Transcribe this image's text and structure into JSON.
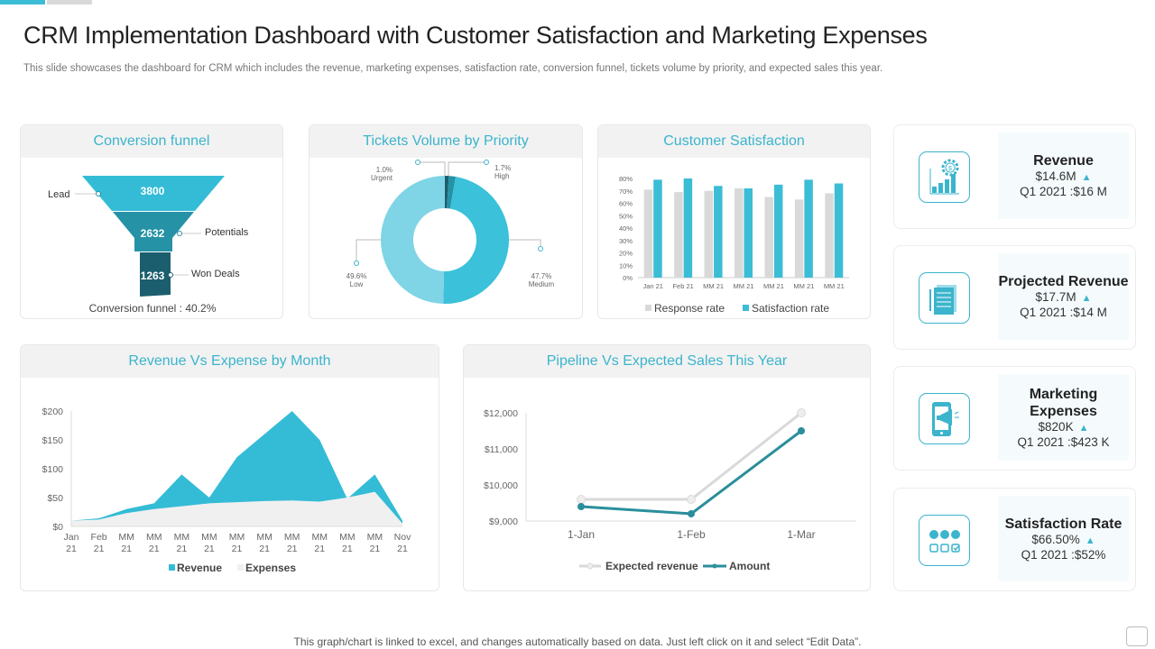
{
  "header": {
    "title": "CRM Implementation Dashboard with Customer Satisfaction and Marketing Expenses",
    "subtitle": "This slide showcases the dashboard for CRM which includes the revenue, marketing expenses, satisfaction rate, conversion funnel, tickets volume by priority, and expected sales this year."
  },
  "colors": {
    "accent": "#3bbdd6",
    "teal_dark": "#2a8f9c",
    "funnel_mid": "#2592a6",
    "funnel_dark": "#1b5e6e",
    "gray": "#d9d9d9"
  },
  "panels": {
    "funnel": "Conversion funnel",
    "tickets": "Tickets Volume by Priority",
    "satisfaction": "Customer Satisfaction",
    "revexp": "Revenue Vs Expense by Month",
    "pipeline": "Pipeline Vs Expected Sales This Year"
  },
  "funnel": {
    "stages": [
      {
        "label": "Lead",
        "value": "3800"
      },
      {
        "label": "Potentials",
        "value": "2632"
      },
      {
        "label": "Won Deals",
        "value": "1263"
      }
    ],
    "footer": "Conversion funnel : 40.2%"
  },
  "chart_data": [
    {
      "type": "pie",
      "donut": true,
      "title": "Tickets Volume by Priority",
      "slices": [
        {
          "name": "Urgent",
          "value": 1.0,
          "label": "1.0%",
          "color": "#1b5e6e"
        },
        {
          "name": "High",
          "value": 1.7,
          "label": "1.7%",
          "color": "#2592a6"
        },
        {
          "name": "Medium",
          "value": 47.7,
          "label": "47.7%",
          "color": "#3bc1d9"
        },
        {
          "name": "Low",
          "value": 49.6,
          "label": "49.6%",
          "color": "#7fd4e6"
        }
      ]
    },
    {
      "type": "bar",
      "title": "Customer Satisfaction",
      "categories": [
        "Jan 21",
        "Feb 21",
        "MM 21",
        "MM 21",
        "MM 21",
        "MM 21",
        "MM 21"
      ],
      "series": [
        {
          "name": "Response rate",
          "values": [
            71,
            69,
            70,
            72,
            65,
            63,
            68
          ],
          "color": "#d9d9d9"
        },
        {
          "name": "Satisfaction rate",
          "values": [
            79,
            80,
            74,
            72,
            75,
            79,
            76
          ],
          "color": "#3bbdd6"
        }
      ],
      "ylim": [
        0,
        80
      ],
      "yticks": [
        "0%",
        "10%",
        "20%",
        "30%",
        "40%",
        "50%",
        "60%",
        "70%",
        "80%"
      ],
      "legend": "bottom"
    },
    {
      "type": "area",
      "title": "Revenue Vs Expense by Month",
      "categories": [
        "Jan 21",
        "Feb 21",
        "MM 21",
        "MM 21",
        "MM 21",
        "MM 21",
        "MM 21",
        "MM 21",
        "MM 21",
        "MM 21",
        "MM 21",
        "MM 21",
        "Nov 21"
      ],
      "series": [
        {
          "name": "Revenue",
          "values": [
            10,
            14,
            30,
            40,
            90,
            50,
            120,
            160,
            200,
            150,
            48,
            90,
            10
          ],
          "color": "#34bcd6"
        },
        {
          "name": "Expenses",
          "values": [
            10,
            12,
            23,
            30,
            35,
            40,
            42,
            44,
            45,
            43,
            50,
            60,
            5
          ],
          "color": "#f0f0f0"
        }
      ],
      "ylim": [
        0,
        200
      ],
      "yticks": [
        "$0",
        "$50",
        "$100",
        "$150",
        "$200"
      ],
      "legend": "bottom"
    },
    {
      "type": "line",
      "title": "Pipeline Vs Expected Sales This Year",
      "categories": [
        "1-Jan",
        "1-Feb",
        "1-Mar"
      ],
      "series": [
        {
          "name": "Expected revenue",
          "values": [
            9600,
            9600,
            12000
          ],
          "color": "#d9d9d9"
        },
        {
          "name": "Amount",
          "values": [
            9400,
            9200,
            11500
          ],
          "color": "#2a8f9c"
        }
      ],
      "ylim": [
        9000,
        12000
      ],
      "yticks": [
        "$9,000",
        "$10,000",
        "$11,000",
        "$12,000"
      ],
      "legend": "bottom"
    }
  ],
  "kpis": [
    {
      "title": "Revenue",
      "value": "$14.6M",
      "compare": "Q1 2021 :$16 M",
      "icon": "revenue-gear-chart-icon"
    },
    {
      "title": "Projected Revenue",
      "value": "$17.7M",
      "compare": "Q1 2021 :$14 M",
      "icon": "documents-icon"
    },
    {
      "title": "Marketing Expenses",
      "value": "$820K",
      "compare": "Q1 2021 :$423 K",
      "icon": "phone-megaphone-icon"
    },
    {
      "title": "Satisfaction Rate",
      "value": "$66.50%",
      "compare": "Q1 2021 :$52%",
      "icon": "feedback-faces-icon"
    }
  ],
  "footer": "This graph/chart is linked to excel,  and changes automatically based on data. Just left click on it and select “Edit Data”."
}
